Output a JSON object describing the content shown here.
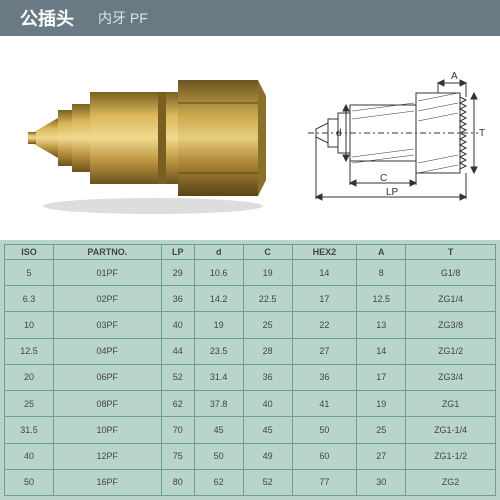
{
  "header": {
    "title_main": "公插头",
    "title_sub": "内牙 PF"
  },
  "diagram_labels": {
    "a": "A",
    "t": "T",
    "d": "d",
    "c": "C",
    "lp": "LP"
  },
  "table": {
    "columns": [
      "ISO",
      "PARTNO.",
      "LP",
      "d",
      "C",
      "HEX2",
      "A",
      "T"
    ],
    "rows": [
      [
        "5",
        "01PF",
        "29",
        "10.6",
        "19",
        "14",
        "8",
        "G1/8"
      ],
      [
        "6.3",
        "02PF",
        "36",
        "14.2",
        "22.5",
        "17",
        "12.5",
        "ZG1/4"
      ],
      [
        "10",
        "03PF",
        "40",
        "19",
        "25",
        "22",
        "13",
        "ZG3/8"
      ],
      [
        "12.5",
        "04PF",
        "44",
        "23.5",
        "28",
        "27",
        "14",
        "ZG1/2"
      ],
      [
        "20",
        "06PF",
        "52",
        "31.4",
        "36",
        "36",
        "17",
        "ZG3/4"
      ],
      [
        "25",
        "08PF",
        "62",
        "37.8",
        "40",
        "41",
        "19",
        "ZG1"
      ],
      [
        "31.5",
        "10PF",
        "70",
        "45",
        "45",
        "50",
        "25",
        "ZG1-1/4"
      ],
      [
        "40",
        "12PF",
        "75",
        "50",
        "49",
        "60",
        "27",
        "ZG1-1/2"
      ],
      [
        "50",
        "16PF",
        "80",
        "62",
        "52",
        "77",
        "30",
        "ZG2"
      ]
    ]
  },
  "colors": {
    "header_bg": "#6a7a84",
    "table_bg": "#b8d4cc",
    "table_border": "#6aa092",
    "brass1": "#c9a84d",
    "brass2": "#a8852e",
    "brass3": "#8b6f2a"
  }
}
